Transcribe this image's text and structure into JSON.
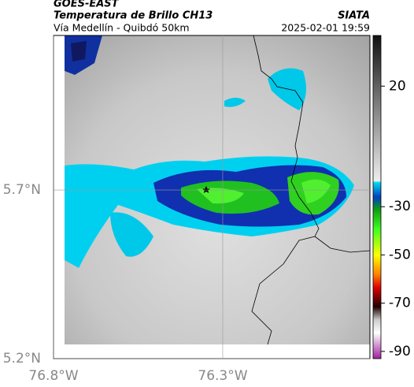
{
  "header": {
    "source": "GOES-EAST",
    "product": "Temperatura de Brillo CH13",
    "route": "Vía Medellín - Quibdó 50km",
    "agency": "SIATA",
    "timestamp": "2025-02-01 19:59"
  },
  "map": {
    "xlim": [
      -76.8,
      -75.865
    ],
    "ylim": [
      5.2,
      6.158
    ],
    "xticks": [
      {
        "value": -76.8,
        "label": "76.8°W"
      },
      {
        "value": -76.3,
        "label": "76.3°W"
      }
    ],
    "yticks": [
      {
        "value": 5.2,
        "label": "5.2°N"
      },
      {
        "value": 5.7,
        "label": "5.7°N"
      }
    ]
  },
  "colorbar": {
    "lim": [
      -93,
      41
    ],
    "ticks": [
      20,
      -30,
      -50,
      -70,
      -90
    ]
  }
}
